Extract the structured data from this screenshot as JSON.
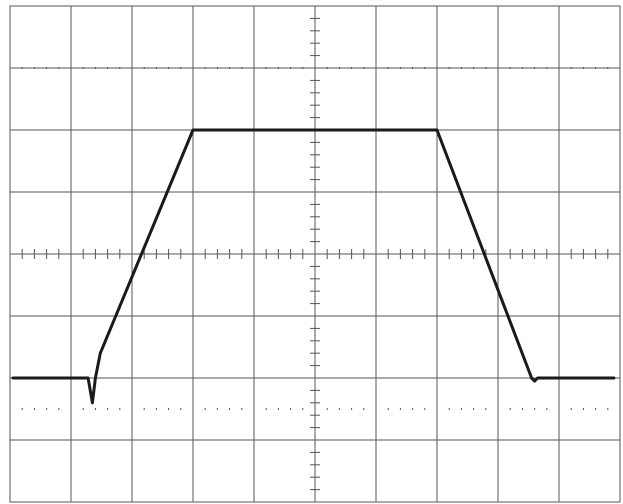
{
  "colors": {
    "background": "#ffffff",
    "grid": "#555555",
    "trace": "#1a1a1a"
  },
  "chart_data": {
    "type": "line",
    "title": "",
    "xlabel": "",
    "ylabel": "",
    "grid": true,
    "graticule": {
      "x_divisions": 10,
      "y_divisions": 8,
      "minor_ticks_per_division": 5,
      "dotted_levels": [
        3,
        -2.5
      ]
    },
    "xlim": [
      -5,
      5
    ],
    "ylim": [
      -4,
      4
    ],
    "series": [
      {
        "x": [
          -4.95,
          -3.72,
          -3.65,
          -3.6,
          -3.52,
          -2.0,
          2.0,
          3.55,
          3.6,
          3.65,
          4.9
        ],
        "y": [
          -2.0,
          -2.0,
          -2.4,
          -2.0,
          -1.6,
          2.0,
          2.0,
          -2.0,
          -2.05,
          -2.0,
          -2.0
        ]
      }
    ]
  }
}
